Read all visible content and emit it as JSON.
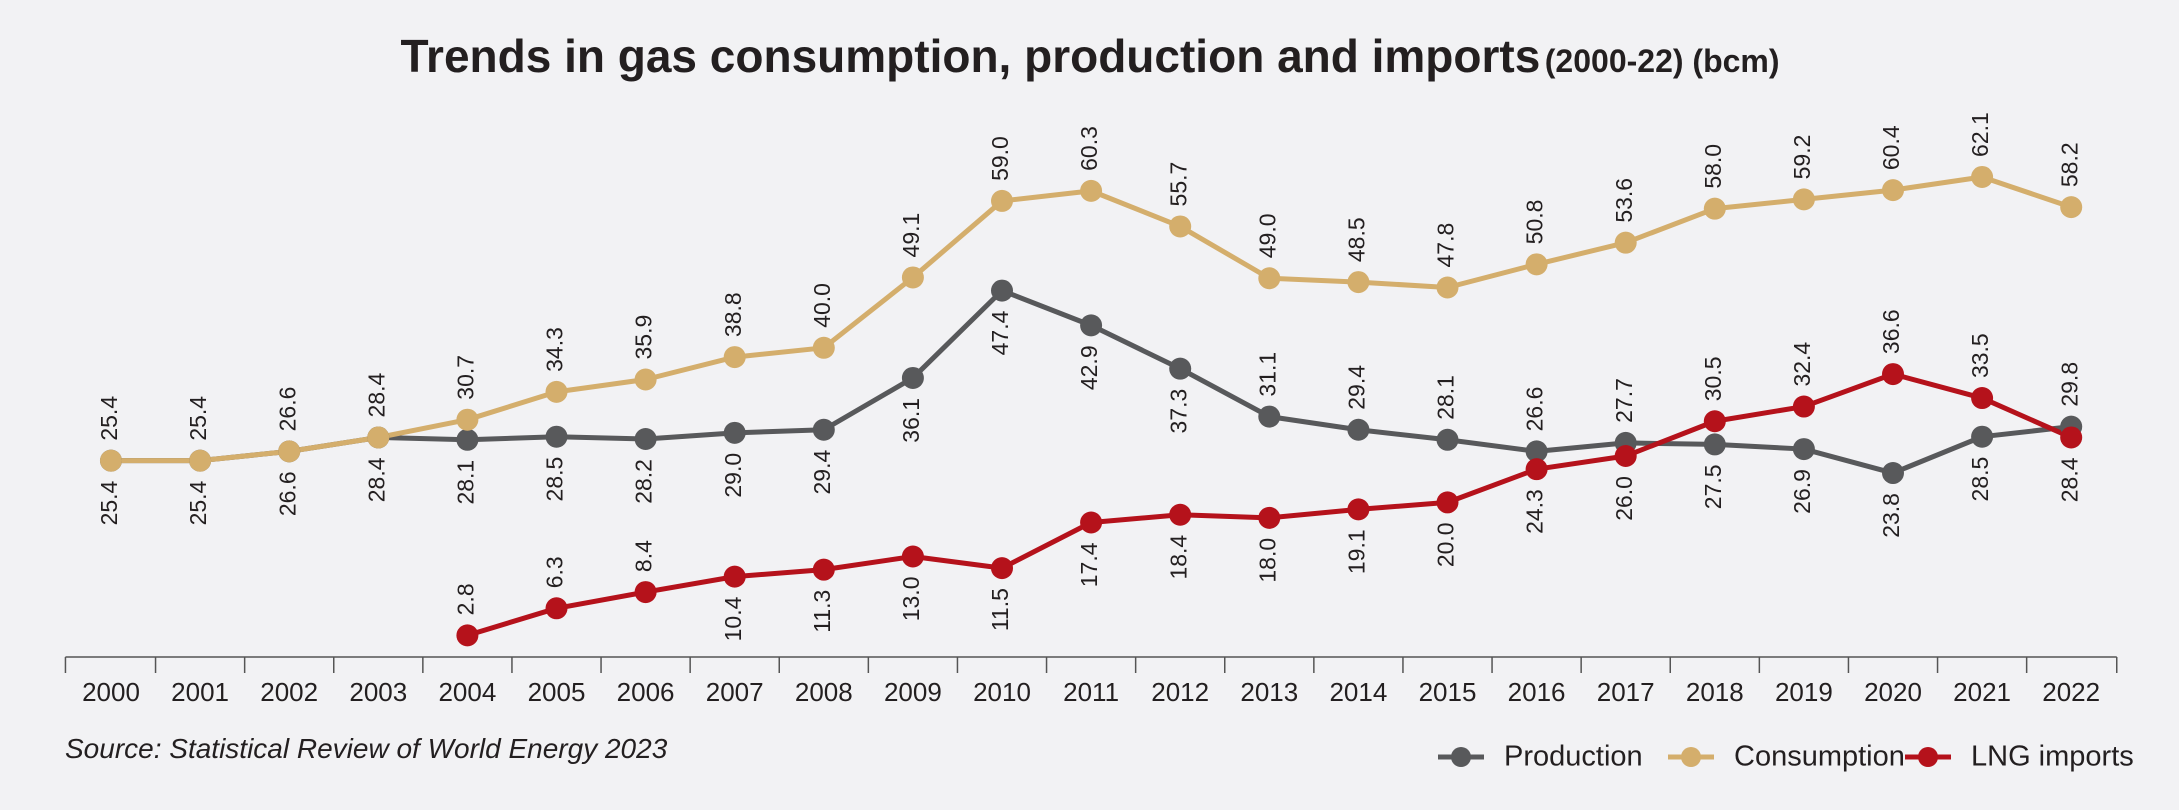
{
  "chart_data": {
    "type": "line",
    "title": "Trends in gas consumption, production and imports",
    "subtitle": "(2000-22) (bcm)",
    "source": "Source: Statistical Review of World Energy 2023",
    "categories": [
      "2000",
      "2001",
      "2002",
      "2003",
      "2004",
      "2005",
      "2006",
      "2007",
      "2008",
      "2009",
      "2010",
      "2011",
      "2012",
      "2013",
      "2014",
      "2015",
      "2016",
      "2017",
      "2018",
      "2019",
      "2020",
      "2021",
      "2022"
    ],
    "series": [
      {
        "name": "Production",
        "color": "#58595b",
        "values": [
          25.4,
          25.4,
          26.6,
          28.4,
          28.1,
          28.5,
          28.2,
          29.0,
          29.4,
          36.1,
          47.4,
          42.9,
          37.3,
          31.1,
          29.4,
          28.1,
          26.6,
          27.7,
          27.5,
          26.9,
          23.8,
          28.5,
          29.8
        ],
        "value_labels": [
          "25.4",
          "25.4",
          "26.6",
          "28.4",
          "28.1",
          "28.5",
          "28.2",
          "29.0",
          "29.4",
          "36.1",
          "47.4",
          "42.9",
          "37.3",
          "31.1",
          "29.4",
          "28.1",
          "26.6",
          "27.7",
          "27.5",
          "26.9",
          "23.8",
          "28.5",
          "29.8"
        ]
      },
      {
        "name": "Consumption",
        "color": "#d4ae6c",
        "values": [
          25.4,
          25.4,
          26.6,
          28.4,
          30.7,
          34.3,
          35.9,
          38.8,
          40.0,
          49.1,
          59.0,
          60.3,
          55.7,
          49.0,
          48.5,
          47.8,
          50.8,
          53.6,
          58.0,
          59.2,
          60.4,
          62.1,
          58.2
        ],
        "value_labels": [
          "25.4",
          "25.4",
          "26.6",
          "28.4",
          "30.7",
          "34.3",
          "35.9",
          "38.8",
          "40.0",
          "49.1",
          "59.0",
          "60.3",
          "55.7",
          "49.0",
          "48.5",
          "47.8",
          "50.8",
          "53.6",
          "58.0",
          "59.2",
          "60.4",
          "62.1",
          "58.2"
        ]
      },
      {
        "name": "LNG imports",
        "color": "#b5121b",
        "values": [
          null,
          null,
          null,
          null,
          2.8,
          6.3,
          8.4,
          10.4,
          11.3,
          13.0,
          11.5,
          17.4,
          18.4,
          18.0,
          19.1,
          20.0,
          24.3,
          26.0,
          30.5,
          32.4,
          36.6,
          33.5,
          28.4
        ],
        "value_labels": [
          null,
          null,
          null,
          null,
          "2.8",
          "6.3",
          "8.4",
          "10.4",
          "11.3",
          "13.0",
          "11.5",
          "17.4",
          "18.4",
          "18.0",
          "19.1",
          "20.0",
          "24.3",
          "26.0",
          "30.5",
          "32.4",
          "36.6",
          "33.5",
          "28.4"
        ]
      }
    ]
  }
}
